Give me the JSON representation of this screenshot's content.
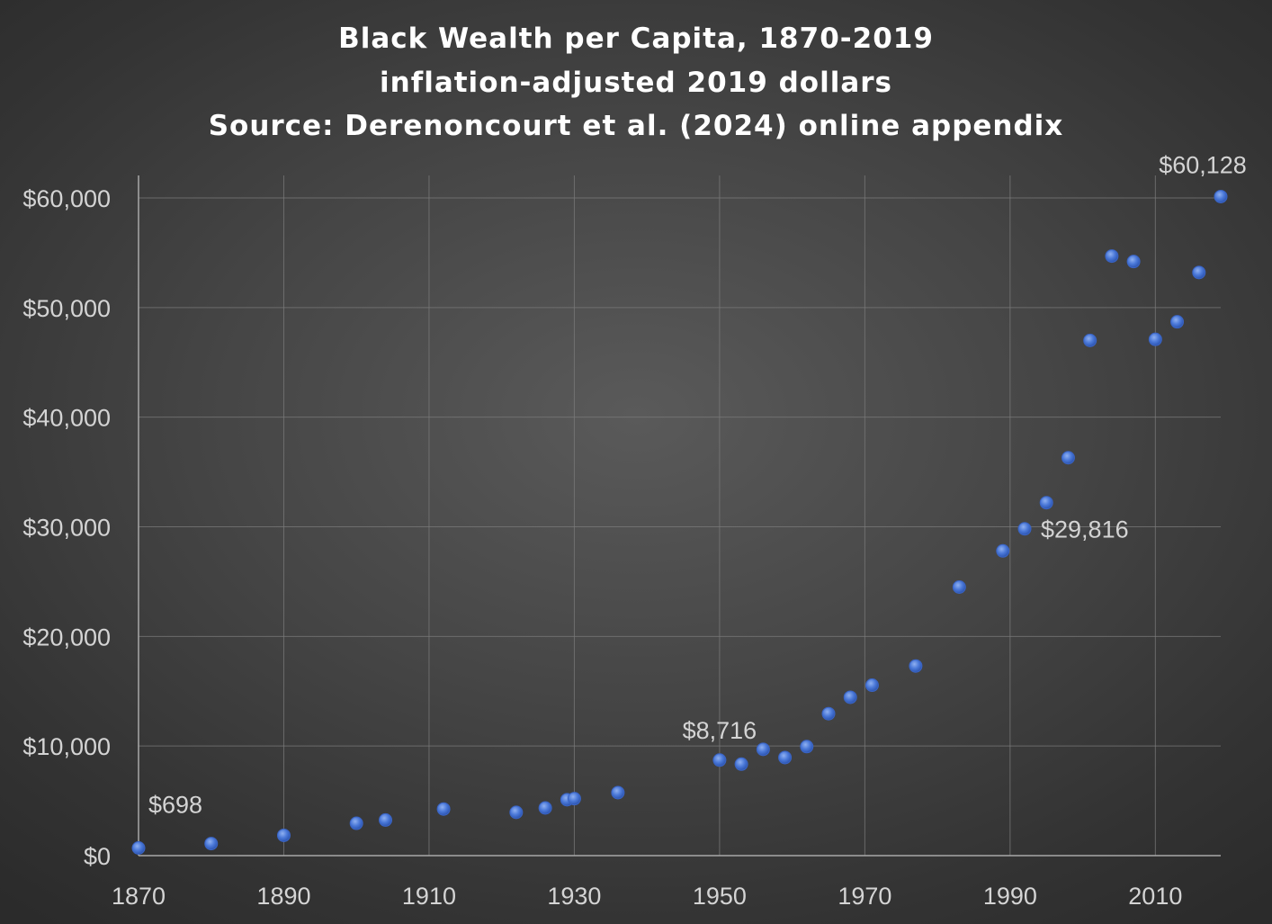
{
  "chart_data": {
    "type": "scatter",
    "title_lines": [
      "Black Wealth per Capita, 1870-2019",
      "inflation-adjusted 2019 dollars",
      "Source: Derenoncourt et al. (2024) online appendix"
    ],
    "xlabel": "",
    "ylabel": "",
    "xlim": [
      1870,
      2019
    ],
    "ylim": [
      0,
      60000
    ],
    "x_ticks": [
      1870,
      1890,
      1910,
      1930,
      1950,
      1970,
      1990,
      2010
    ],
    "x_tick_labels": [
      "1870",
      "1890",
      "1910",
      "1930",
      "1950",
      "1970",
      "1990",
      "2010"
    ],
    "y_ticks": [
      0,
      10000,
      20000,
      30000,
      40000,
      50000,
      60000
    ],
    "y_tick_labels": [
      "$0",
      "$10,000",
      "$20,000",
      "$30,000",
      "$40,000",
      "$50,000",
      "$60,000"
    ],
    "grid": true,
    "series": [
      {
        "color": "#4a78d8",
        "x": [
          1870,
          1880,
          1890,
          1900,
          1904,
          1912,
          1922,
          1926,
          1929,
          1930,
          1936,
          1950,
          1953,
          1956,
          1959,
          1962,
          1965,
          1968,
          1971,
          1977,
          1983,
          1989,
          1992,
          1995,
          1998,
          2001,
          2004,
          2007,
          2010,
          2013,
          2016,
          2019
        ],
        "y": [
          698,
          1100,
          1850,
          2950,
          3250,
          4250,
          3950,
          4350,
          5100,
          5200,
          5750,
          8716,
          8350,
          9700,
          8950,
          9950,
          12950,
          14450,
          15550,
          17300,
          24500,
          27800,
          29816,
          32200,
          36300,
          47000,
          54700,
          54200,
          47100,
          48700,
          53200,
          60128
        ]
      }
    ],
    "annotations": [
      {
        "text": "$698",
        "x": 1870,
        "y": 698
      },
      {
        "text": "$8,716",
        "x": 1950,
        "y": 8716
      },
      {
        "text": "$29,816",
        "x": 1992,
        "y": 29816
      },
      {
        "text": "$60,128",
        "x": 2019,
        "y": 60128
      }
    ]
  }
}
